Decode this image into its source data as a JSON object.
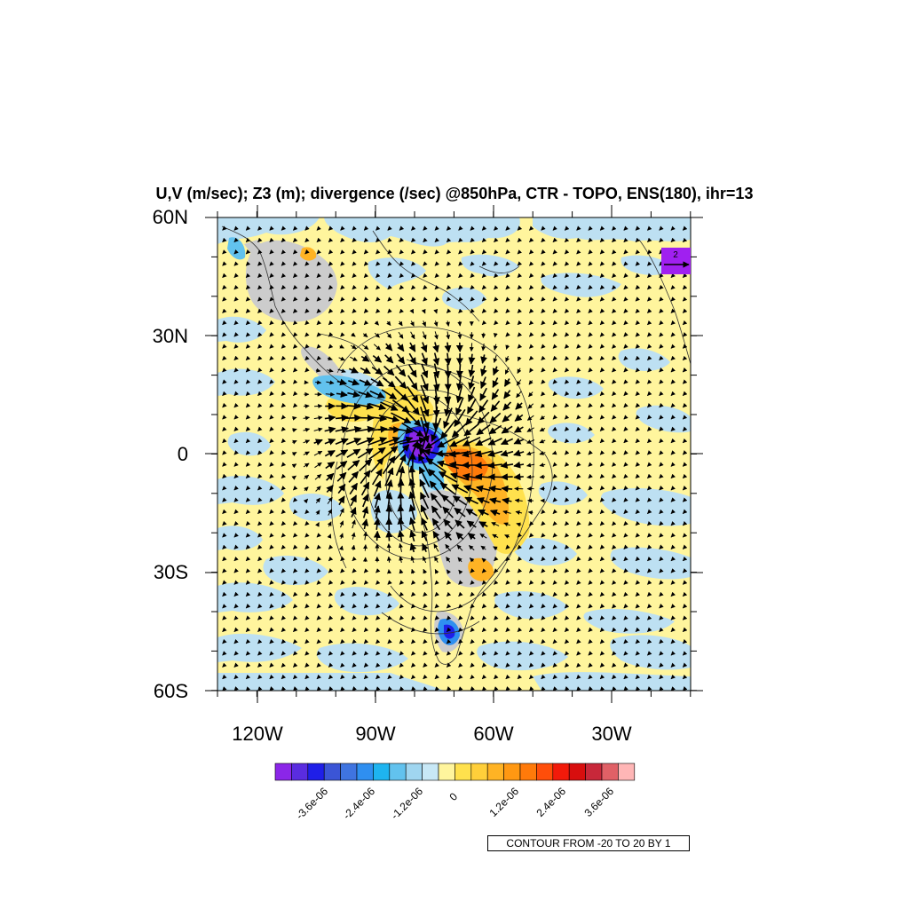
{
  "title": "U,V (m/sec); Z3 (m); divergence (/sec) @850hPa, CTR - TOPO, ENS(180), ihr=13",
  "map": {
    "lat_labels": [
      "60N",
      "30N",
      "0",
      "30S",
      "60S"
    ],
    "lon_labels": [
      "120W",
      "90W",
      "60W",
      "30W"
    ],
    "reference_vector_label": "2",
    "colors": {
      "land_mask": "#cccccc",
      "positive_light": "#fff59d",
      "negative_light": "#bde0f2",
      "vector": "#000000",
      "ref_box": "#a020f0"
    }
  },
  "colorbar": {
    "colors": [
      "#8b26e8",
      "#5a2ce0",
      "#1f1fe8",
      "#3b55d6",
      "#3f74e0",
      "#2f8ff0",
      "#1eb4f0",
      "#62c2ee",
      "#a0d6f0",
      "#c8e8f6",
      "#fff59d",
      "#ffe14d",
      "#ffcf3a",
      "#ffb324",
      "#ff9812",
      "#ff7a0a",
      "#ff4e0a",
      "#f21a0a",
      "#d80e0e",
      "#c8283a",
      "#e06066",
      "#ffb6b6"
    ],
    "labels": [
      "-3.6e-06",
      "-2.4e-06",
      "-1.2e-06",
      "0",
      "1.2e-06",
      "2.4e-06",
      "3.6e-06"
    ]
  },
  "contour_info": "CONTOUR FROM -20 TO 20 BY 1"
}
